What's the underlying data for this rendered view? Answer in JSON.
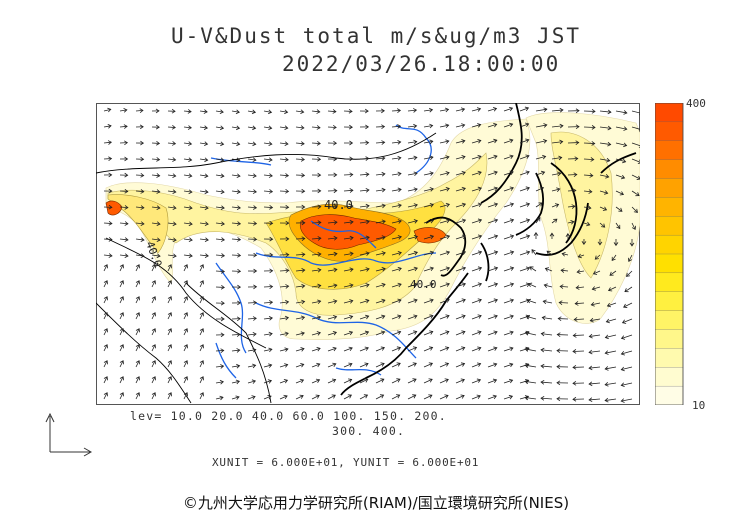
{
  "title": {
    "line1": "U-V&Dust total m/s&ug/m3 JST",
    "line2": "2022/03/26.18:00:00"
  },
  "colorbar": {
    "max_label": "400",
    "min_label": "10",
    "colors": [
      "#ff4a00",
      "#ff5a00",
      "#ff7000",
      "#ff8c00",
      "#ffa200",
      "#ffb400",
      "#ffc400",
      "#ffd400",
      "#ffe000",
      "#ffea1e",
      "#fff040",
      "#fff466",
      "#fff78a",
      "#fffaae",
      "#fffcd0",
      "#fffde6"
    ]
  },
  "map": {
    "contour_labels": [
      "40.0",
      "40.0",
      "40.0"
    ],
    "land_color": "#ffffff",
    "river_color": "#1e64e6",
    "coast_color": "#000000"
  },
  "levels": {
    "line1": "lev= 10.0 20.0 40.0 60.0 100. 150. 200.",
    "line2": "300. 400."
  },
  "units": "XUNIT = 6.000E+01, YUNIT = 6.000E+01",
  "credit": "©九州大学応用力学研究所(RIAM)/国立環境研究所(NIES)"
}
